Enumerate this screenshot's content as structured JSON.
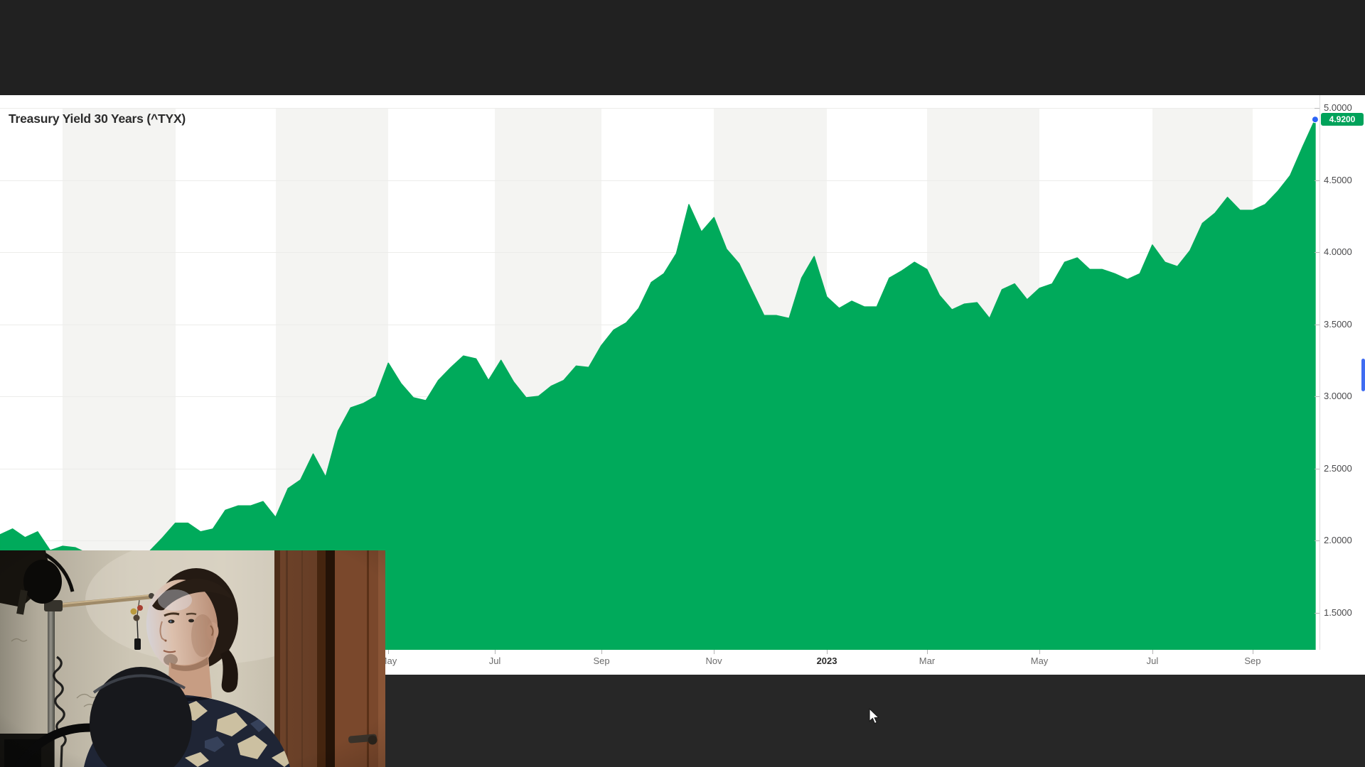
{
  "chart": {
    "title": "Treasury Yield 30 Years (^TYX)"
  },
  "chart_data": {
    "type": "area",
    "title": "Treasury Yield 30 Years (^TYX)",
    "symbol": "^TYX",
    "last_value": 4.92,
    "last_value_label": "4.9200",
    "interval": "weekly",
    "legend": "none",
    "grid": true,
    "y_axis_side": "right",
    "y_visible_range": [
      1.26,
      5.06
    ],
    "y_ticks": [
      {
        "value": 5.0,
        "label": "5.0000"
      },
      {
        "value": 4.5,
        "label": "4.5000"
      },
      {
        "value": 4.0,
        "label": "4.0000"
      },
      {
        "value": 3.5,
        "label": "3.5000"
      },
      {
        "value": 3.0,
        "label": "3.0000"
      },
      {
        "value": 2.5,
        "label": "2.5000"
      },
      {
        "value": 2.0,
        "label": "2.0000"
      },
      {
        "value": 1.5,
        "label": "1.5000"
      }
    ],
    "x_ticks": [
      {
        "label": "May",
        "f": 0.294,
        "bold": false
      },
      {
        "label": "Jul",
        "f": 0.3748,
        "bold": false
      },
      {
        "label": "Sep",
        "f": 0.4556,
        "bold": false
      },
      {
        "label": "Nov",
        "f": 0.5407,
        "bold": false
      },
      {
        "label": "2023",
        "f": 0.6263,
        "bold": true
      },
      {
        "label": "Mar",
        "f": 0.7022,
        "bold": false
      },
      {
        "label": "May",
        "f": 0.7873,
        "bold": false
      },
      {
        "label": "Jul",
        "f": 0.8729,
        "bold": false
      },
      {
        "label": "Sep",
        "f": 0.9488,
        "bold": false
      }
    ],
    "background_bands_f": [
      [
        0.0474,
        0.133
      ],
      [
        0.2089,
        0.294
      ],
      [
        0.3748,
        0.4556
      ],
      [
        0.5407,
        0.6263
      ],
      [
        0.7022,
        0.7873
      ],
      [
        0.8729,
        0.9488
      ]
    ],
    "series": [
      {
        "name": "^TYX yield",
        "x_end_frac": 0.9962,
        "values": [
          2.04,
          2.08,
          2.02,
          2.06,
          1.93,
          1.96,
          1.95,
          1.91,
          1.83,
          1.68,
          1.78,
          1.84,
          1.93,
          2.02,
          2.12,
          2.12,
          2.06,
          2.08,
          2.21,
          2.24,
          2.24,
          2.27,
          2.16,
          2.36,
          2.42,
          2.6,
          2.44,
          2.76,
          2.92,
          2.95,
          3.0,
          3.23,
          3.09,
          2.99,
          2.97,
          3.11,
          3.2,
          3.28,
          3.26,
          3.11,
          3.25,
          3.1,
          2.99,
          3.0,
          3.07,
          3.11,
          3.21,
          3.2,
          3.35,
          3.46,
          3.51,
          3.61,
          3.79,
          3.85,
          3.99,
          4.33,
          4.14,
          4.24,
          4.02,
          3.92,
          3.74,
          3.56,
          3.56,
          3.54,
          3.82,
          3.97,
          3.69,
          3.61,
          3.66,
          3.62,
          3.62,
          3.82,
          3.87,
          3.93,
          3.88,
          3.7,
          3.6,
          3.64,
          3.65,
          3.54,
          3.74,
          3.78,
          3.67,
          3.75,
          3.78,
          3.93,
          3.96,
          3.88,
          3.88,
          3.85,
          3.81,
          3.85,
          4.05,
          3.93,
          3.9,
          4.01,
          4.2,
          4.27,
          4.38,
          4.29,
          4.29,
          4.33,
          4.42,
          4.53,
          4.73,
          4.92
        ]
      }
    ],
    "colors": {
      "area_green": "#00aa5b",
      "badge_green": "#00a25a",
      "dot_blue": "#2b63f6",
      "stripe_gray": "#f4f4f2"
    }
  }
}
